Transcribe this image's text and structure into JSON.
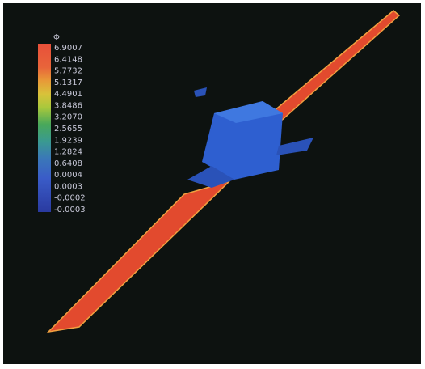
{
  "legend": {
    "title": "Φ",
    "labels": [
      "6.9007",
      "6.4148",
      "5.7732",
      "5.1317",
      "4.4901",
      "3.8486",
      "3.2070",
      "2.5655",
      "1.9239",
      "1.2824",
      "0.6408",
      "0.0004",
      "0.0003",
      "-0,0002",
      "-0.0003"
    ]
  }
}
